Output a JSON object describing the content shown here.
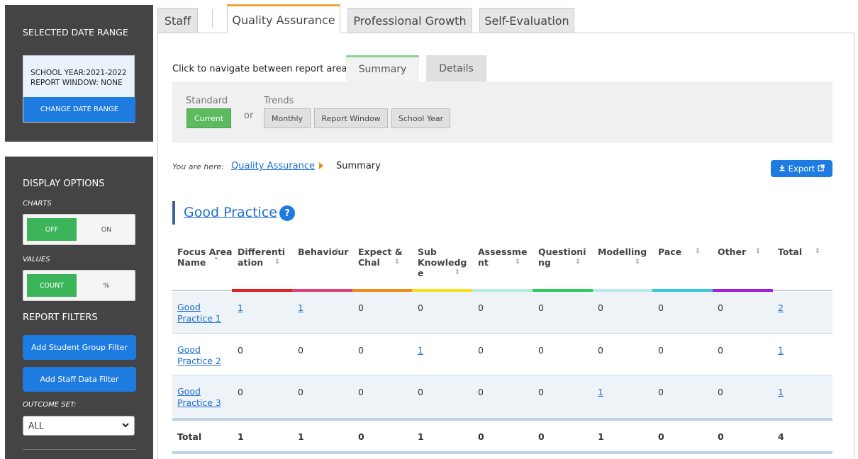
{
  "sidebar": {
    "date_panel": {
      "title": "SELECTED DATE RANGE",
      "school_year": "SCHOOL YEAR:2021-2022",
      "report_window": "REPORT WINDOW: NONE",
      "change_button": "CHANGE DATE RANGE"
    },
    "options_panel": {
      "title": "DISPLAY OPTIONS",
      "charts_label": "CHARTS",
      "charts_on": "OFF",
      "charts_off": "ON",
      "values_label": "VALUES",
      "values_on": "COUNT",
      "values_off": "%",
      "filters_title": "REPORT FILTERS",
      "student_filter_button": "Add Student Group Filter",
      "staff_filter_button": "Add Staff Data Filter",
      "outcome_label": "OUTCOME SET:",
      "outcome_value": "ALL"
    }
  },
  "main_tabs": [
    {
      "label": "Staff",
      "active": false
    },
    {
      "label": "Quality Assurance",
      "active": true
    },
    {
      "label": "Professional Growth",
      "active": false
    },
    {
      "label": "Self-Evaluation",
      "active": false
    }
  ],
  "nav": {
    "label": "Click to navigate between report areas:",
    "summary_tab": "Summary",
    "details_tab": "Details"
  },
  "filters": {
    "standard_label": "Standard",
    "trends_label": "Trends",
    "or_label": "or",
    "current": "Current",
    "monthly": "Monthly",
    "report_window": "Report Window",
    "school_year": "School Year"
  },
  "breadcrumb": {
    "label": "You are here:",
    "link": "Quality Assurance",
    "current": "Summary"
  },
  "export_label": "Export",
  "section": {
    "title": "Good Practice",
    "help": "?"
  },
  "table": {
    "headers": {
      "name_1": "Focus Area",
      "name_2": "Name",
      "h1_1": "Differenti",
      "h1_2": "ation",
      "h2_1": "Behaviour",
      "h3_1": "Expect &",
      "h3_2": "Chal",
      "h4_1": "Sub",
      "h4_2": "Knowledg",
      "h4_3": "e",
      "h5_1": "Assessme",
      "h5_2": "nt",
      "h6_1": "Questioni",
      "h6_2": "ng",
      "h7_1": "Modelling",
      "h8_1": "Pace",
      "h9_1": "Other",
      "h10_1": "Total"
    },
    "colors": [
      "#e02020",
      "#e0407a",
      "#f08c1e",
      "#f5e020",
      "#b8eedb",
      "#2ecc5e",
      "#b8eaea",
      "#3cc6dd",
      "#a020e0"
    ],
    "rows": [
      {
        "name_1": "Good",
        "name_2": "Practice 1",
        "c1": "1",
        "c2": "1",
        "c3": "0",
        "c4": "0",
        "c5": "0",
        "c6": "0",
        "c7": "0",
        "c8": "0",
        "c9": "0",
        "total": "2"
      },
      {
        "name_1": "Good",
        "name_2": "Practice 2",
        "c1": "0",
        "c2": "0",
        "c3": "0",
        "c4": "1",
        "c5": "0",
        "c6": "0",
        "c7": "0",
        "c8": "0",
        "c9": "0",
        "total": "1"
      },
      {
        "name_1": "Good",
        "name_2": "Practice 3",
        "c1": "0",
        "c2": "0",
        "c3": "0",
        "c4": "0",
        "c5": "0",
        "c6": "0",
        "c7": "1",
        "c8": "0",
        "c9": "0",
        "total": "1"
      }
    ],
    "totals": {
      "label": "Total",
      "c1": "1",
      "c2": "1",
      "c3": "0",
      "c4": "1",
      "c5": "0",
      "c6": "0",
      "c7": "1",
      "c8": "0",
      "c9": "0",
      "total": "4"
    }
  }
}
